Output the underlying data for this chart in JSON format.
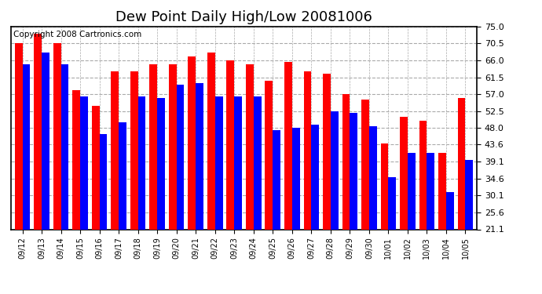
{
  "title": "Dew Point Daily High/Low 20081006",
  "copyright": "Copyright 2008 Cartronics.com",
  "categories": [
    "09/12",
    "09/13",
    "09/14",
    "09/15",
    "09/16",
    "09/17",
    "09/18",
    "09/19",
    "09/20",
    "09/21",
    "09/22",
    "09/23",
    "09/24",
    "09/25",
    "09/26",
    "09/27",
    "09/28",
    "09/29",
    "09/30",
    "10/01",
    "10/02",
    "10/03",
    "10/04",
    "10/05"
  ],
  "highs": [
    70.5,
    73.0,
    70.5,
    58.0,
    54.0,
    63.0,
    63.0,
    65.0,
    65.0,
    67.0,
    68.0,
    66.0,
    65.0,
    60.5,
    65.5,
    63.0,
    62.5,
    57.0,
    55.5,
    44.0,
    51.0,
    50.0,
    41.5,
    56.0
  ],
  "lows": [
    65.0,
    68.0,
    65.0,
    56.5,
    46.5,
    49.5,
    56.5,
    56.0,
    59.5,
    60.0,
    56.5,
    56.5,
    56.5,
    47.5,
    48.0,
    49.0,
    52.5,
    52.0,
    48.5,
    35.0,
    41.5,
    41.5,
    31.0,
    39.5
  ],
  "high_color": "#ff0000",
  "low_color": "#0000ff",
  "bg_color": "#ffffff",
  "plot_bg_color": "#ffffff",
  "grid_color": "#aaaaaa",
  "yticks": [
    21.1,
    25.6,
    30.1,
    34.6,
    39.1,
    43.6,
    48.0,
    52.5,
    57.0,
    61.5,
    66.0,
    70.5,
    75.0
  ],
  "ymin": 21.1,
  "ymax": 75.0,
  "title_fontsize": 13,
  "copyright_fontsize": 7.5,
  "tick_fontsize": 8,
  "xtick_fontsize": 7
}
